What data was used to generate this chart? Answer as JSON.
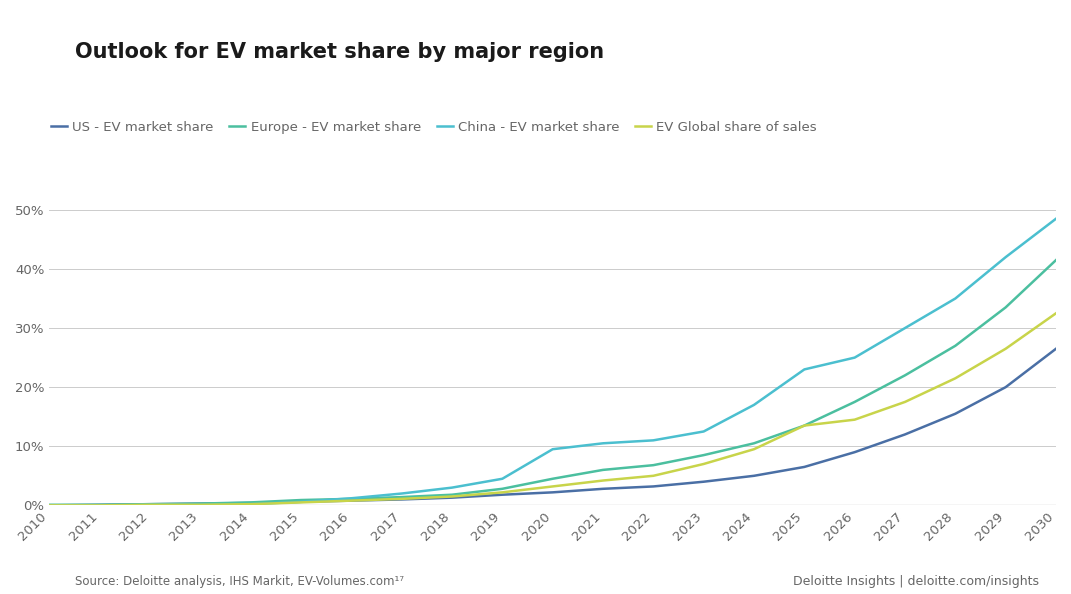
{
  "title": "Outlook for EV market share by major region",
  "years": [
    2010,
    2011,
    2012,
    2013,
    2014,
    2015,
    2016,
    2017,
    2018,
    2019,
    2020,
    2021,
    2022,
    2023,
    2024,
    2025,
    2026,
    2027,
    2028,
    2029,
    2030
  ],
  "us": [
    0.0,
    0.1,
    0.2,
    0.3,
    0.4,
    0.6,
    0.8,
    1.0,
    1.3,
    1.8,
    2.2,
    2.8,
    3.2,
    4.0,
    5.0,
    6.5,
    9.0,
    12.0,
    15.5,
    20.0,
    26.5
  ],
  "europe": [
    0.1,
    0.1,
    0.2,
    0.3,
    0.5,
    0.9,
    1.1,
    1.4,
    1.8,
    2.8,
    4.5,
    6.0,
    6.8,
    8.5,
    10.5,
    13.5,
    17.5,
    22.0,
    27.0,
    33.5,
    41.5
  ],
  "china": [
    0.0,
    0.0,
    0.1,
    0.1,
    0.2,
    0.6,
    1.2,
    2.0,
    3.0,
    4.5,
    9.5,
    10.5,
    11.0,
    12.5,
    17.0,
    23.0,
    25.0,
    30.0,
    35.0,
    42.0,
    48.5
  ],
  "global": [
    0.0,
    0.0,
    0.1,
    0.1,
    0.2,
    0.5,
    0.8,
    1.1,
    1.5,
    2.2,
    3.2,
    4.2,
    5.0,
    7.0,
    9.5,
    13.5,
    14.5,
    17.5,
    21.5,
    26.5,
    32.5
  ],
  "colors": {
    "us": "#4a6fa5",
    "europe": "#4bbf9f",
    "china": "#4bbfcf",
    "global": "#c8d44a"
  },
  "legend_labels": [
    "US - EV market share",
    "Europe - EV market share",
    "China - EV market share",
    "EV Global share of sales"
  ],
  "legend_colors": [
    "#4a6fa5",
    "#4bbf9f",
    "#4bbfcf",
    "#c8d44a"
  ],
  "ylim": [
    0,
    55
  ],
  "yticks": [
    0,
    10,
    20,
    30,
    40,
    50
  ],
  "source_text": "Source: Deloitte analysis, IHS Markit, EV-Volumes.com¹⁷",
  "branding_text": "Deloitte Insights | deloitte.com/insights",
  "background_color": "#ffffff",
  "grid_color": "#cccccc",
  "text_color": "#666666",
  "title_color": "#1a1a1a"
}
